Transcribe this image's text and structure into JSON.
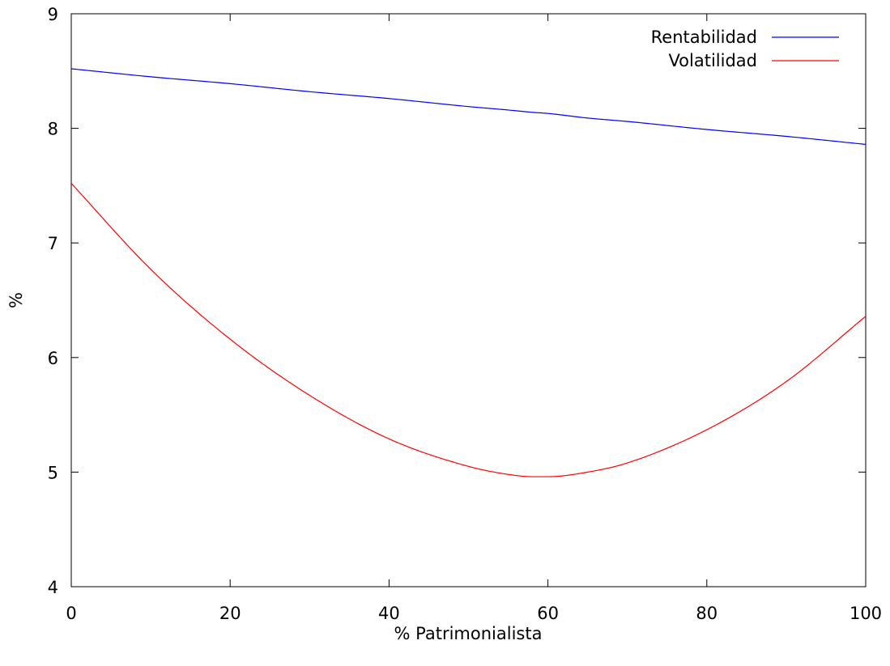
{
  "chart_data": {
    "type": "line",
    "title": "",
    "xlabel": "% Patrimonialista",
    "ylabel": "%",
    "xlim": [
      0,
      100
    ],
    "ylim": [
      4,
      9
    ],
    "xticks": [
      0,
      20,
      40,
      60,
      80,
      100
    ],
    "yticks": [
      4,
      5,
      6,
      7,
      8,
      9
    ],
    "grid": false,
    "legend_position": "top-right",
    "x": [
      0,
      10,
      20,
      30,
      40,
      50,
      55,
      58,
      60,
      65,
      70,
      80,
      90,
      100
    ],
    "series": [
      {
        "name": "Rentabilidad",
        "color": "#0000ff",
        "values": [
          8.52,
          8.45,
          8.39,
          8.32,
          8.26,
          8.19,
          8.16,
          8.14,
          8.13,
          8.09,
          8.06,
          7.99,
          7.93,
          7.86
        ]
      },
      {
        "name": "Volatilidad",
        "color": "#ff0000",
        "values": [
          7.52,
          6.77,
          6.16,
          5.67,
          5.29,
          5.05,
          4.98,
          4.96,
          4.96,
          5.0,
          5.08,
          5.37,
          5.79,
          6.36
        ]
      }
    ]
  }
}
